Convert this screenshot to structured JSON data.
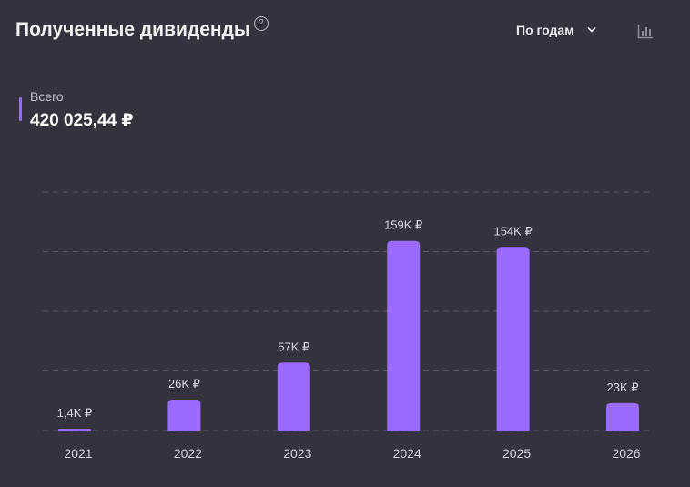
{
  "header": {
    "title": "Полученные дивиденды",
    "help_icon": "question-circle-icon",
    "period_label": "По годам",
    "chart_icon": "bar-chart-icon"
  },
  "summary": {
    "label": "Всего",
    "value": "420 025,44 ₽",
    "color": "#9b6bff"
  },
  "chart_data": {
    "type": "bar",
    "categories": [
      "2021",
      "2022",
      "2023",
      "2024",
      "2025",
      "2026"
    ],
    "values": [
      1400,
      26000,
      57000,
      159000,
      154000,
      23000
    ],
    "labels": [
      "1,4K ₽",
      "26K ₽",
      "57K ₽",
      "159K ₽",
      "154K ₽",
      "23K ₽"
    ],
    "ylim": [
      0,
      200000
    ],
    "grid_values": [
      0,
      50000,
      100000,
      150000,
      200000
    ],
    "grid": true,
    "bar_color": "#9b6bff"
  }
}
